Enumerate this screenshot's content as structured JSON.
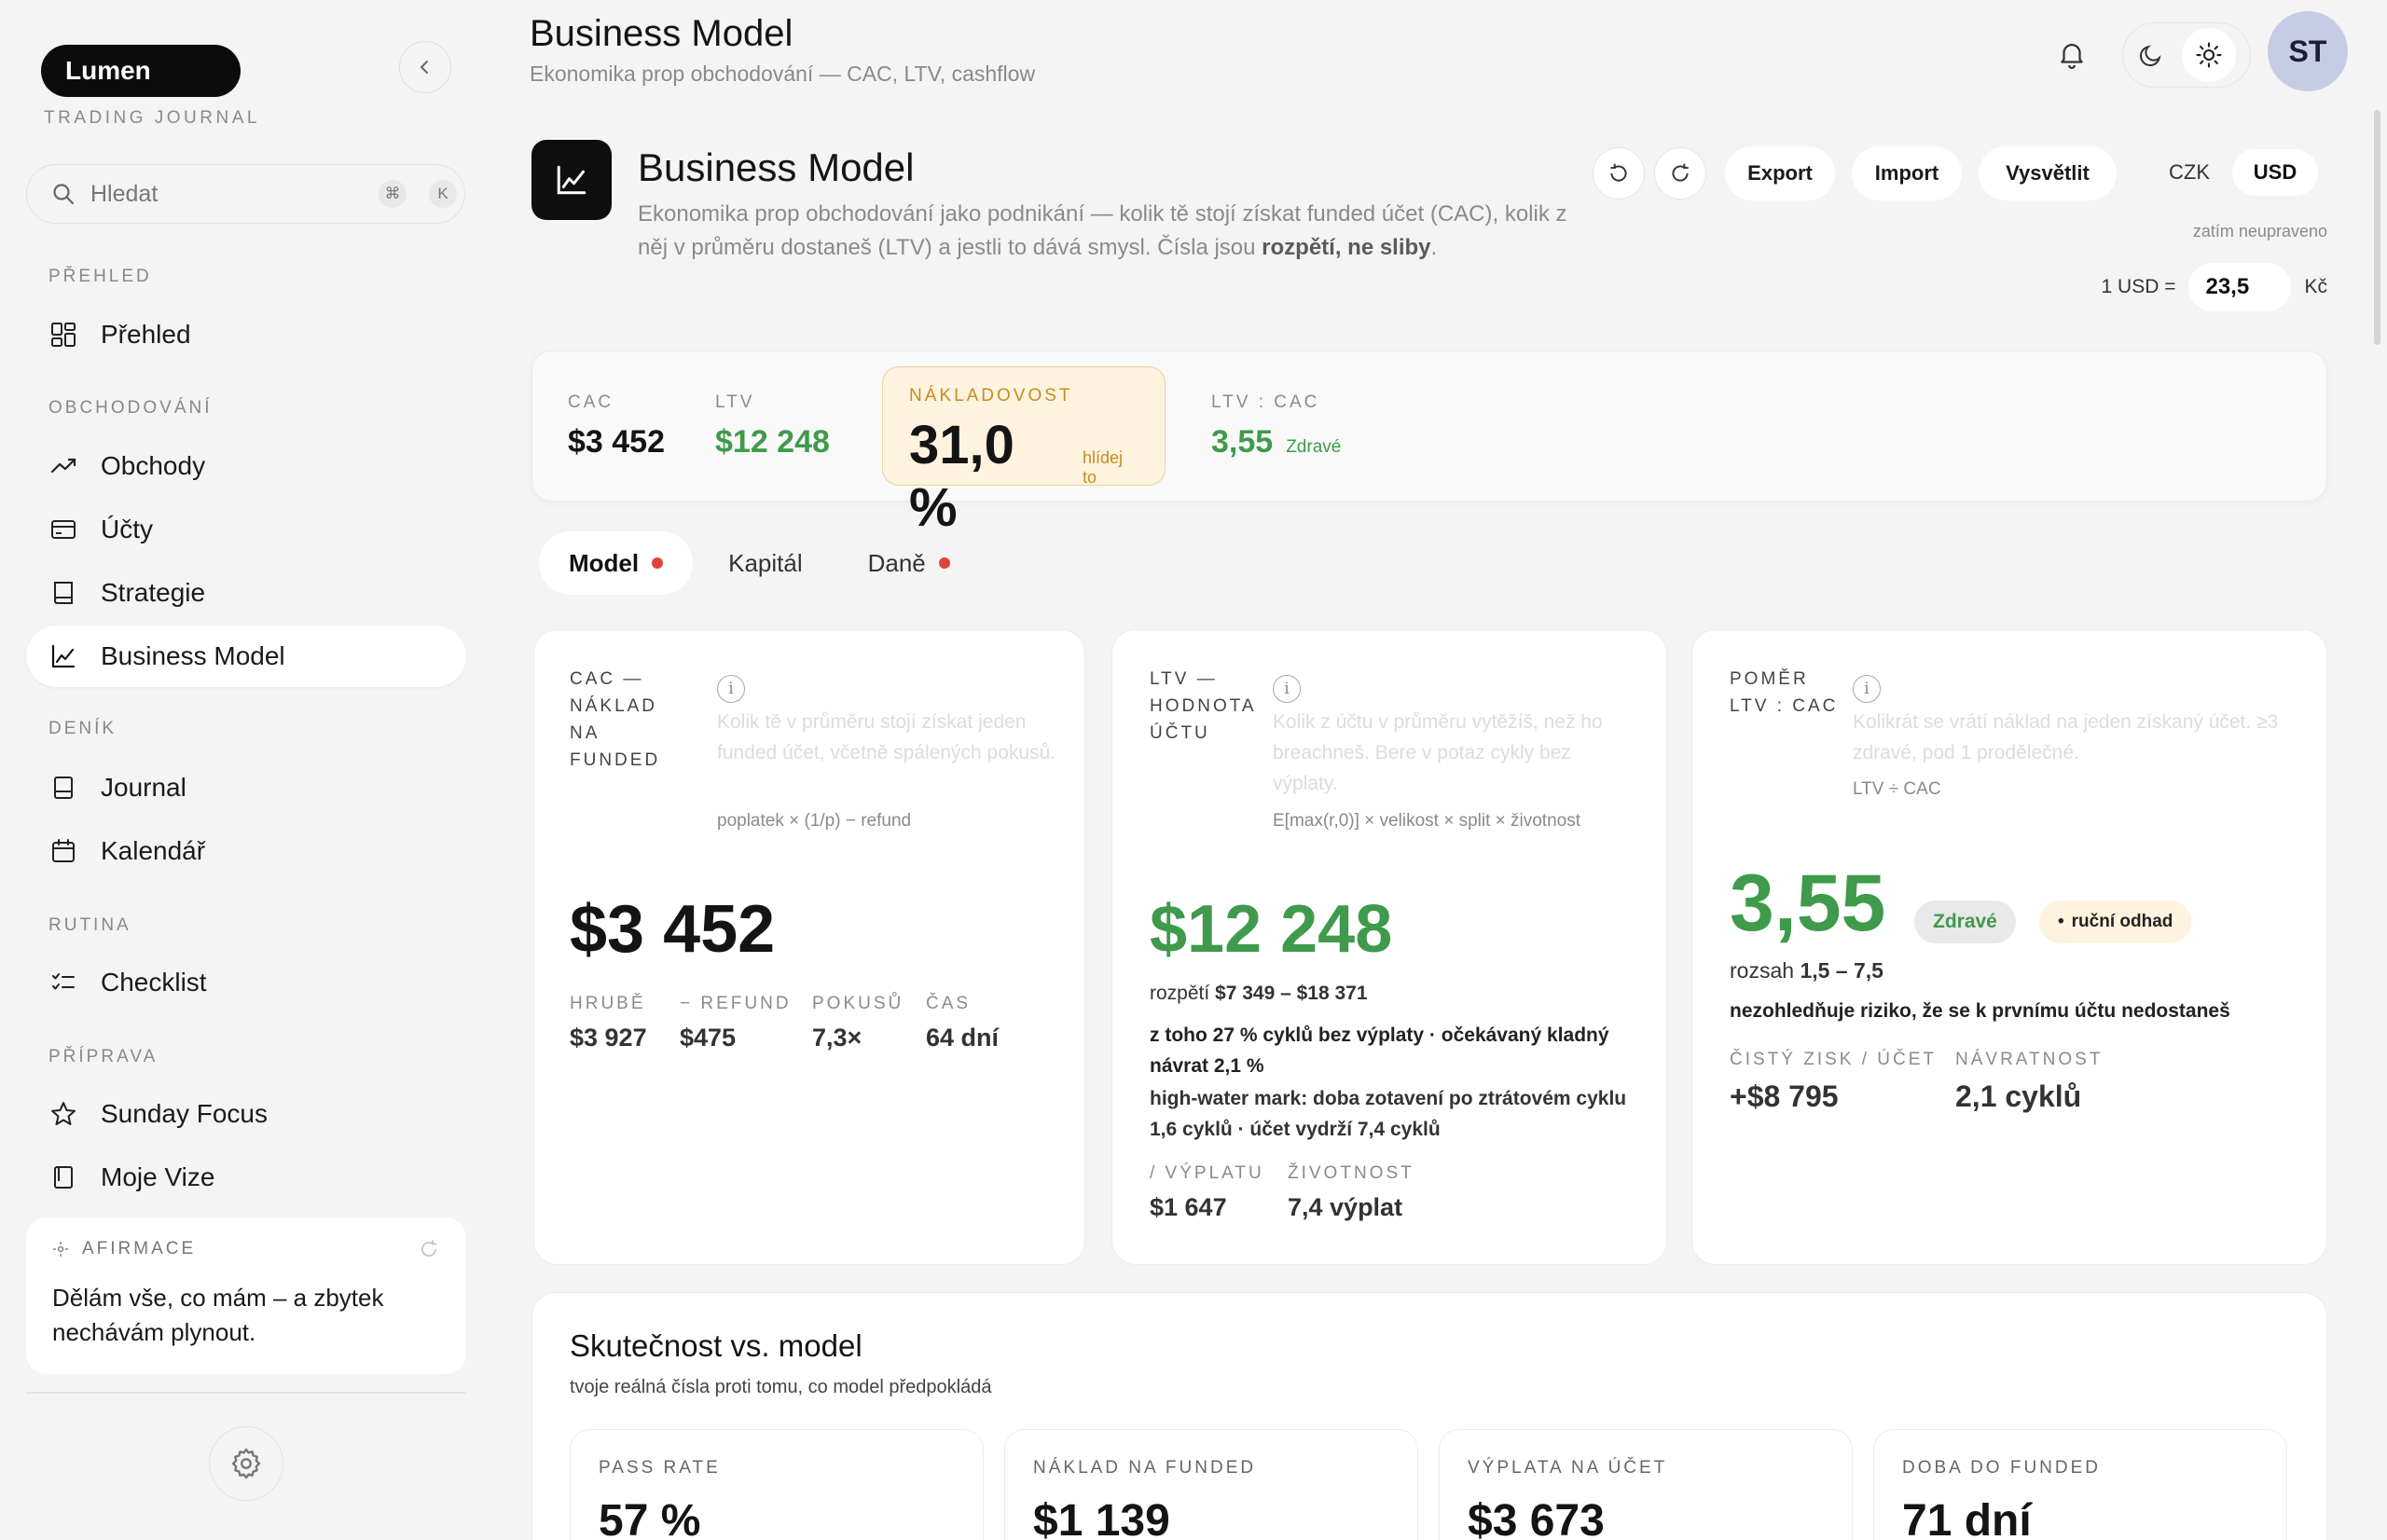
{
  "sidebar": {
    "logo": "Lumen",
    "logo_sub": "TRADING JOURNAL",
    "search_placeholder": "Hledat",
    "search_keys": [
      "⌘",
      "K"
    ],
    "sections": {
      "prehled": "PŘEHLED",
      "obchodovani": "OBCHODOVÁNÍ",
      "denik": "DENÍK",
      "rutina": "RUTINA",
      "priprava": "PŘÍPRAVA"
    },
    "items": {
      "prehled": "Přehled",
      "obchody": "Obchody",
      "ucty": "Účty",
      "strategie": "Strategie",
      "business_model": "Business Model",
      "journal": "Journal",
      "kalendar": "Kalendář",
      "checklist": "Checklist",
      "sunday_focus": "Sunday Focus",
      "moje_vize": "Moje Vize"
    },
    "affirmation": {
      "label": "AFIRMACE",
      "text": "Dělám vše, co mám – a zbytek nechávám plynout."
    }
  },
  "header": {
    "title": "Business Model",
    "subtitle": "Ekonomika prop obchodování — CAC, LTV, cashflow",
    "avatar": "ST"
  },
  "hero": {
    "title": "Business Model",
    "desc_plain": "Ekonomika prop obchodování jako podnikání — kolik tě stojí získat funded účet (CAC), kolik z něj v průměru dostaneš (LTV) a jestli to dává smysl. Čísla jsou ",
    "desc_bold": "rozpětí, ne sliby",
    "desc_end": ".",
    "buttons": {
      "export": "Export",
      "import": "Import",
      "explain": "Vysvětlit"
    },
    "currency": {
      "czk": "CZK",
      "usd": "USD",
      "selected": "USD"
    },
    "unsaved": "zatím neupraveno",
    "rate_label": "1 USD =",
    "rate_value": "23,5",
    "rate_unit": "Kč"
  },
  "kpi": {
    "cac": {
      "label": "CAC",
      "value": "$3 452"
    },
    "ltv": {
      "label": "LTV",
      "value": "$12 248"
    },
    "cost": {
      "label": "NÁKLADOVOST",
      "value": "31,0 %",
      "note": "hlídej to"
    },
    "ratio": {
      "label": "LTV : CAC",
      "value": "3,55",
      "note": "Zdravé"
    }
  },
  "tabs": [
    "Model",
    "Kapitál",
    "Daně"
  ],
  "cards": {
    "cac": {
      "label": "CAC — NÁKLAD NA FUNDED",
      "hint": "Kolik tě v průměru stojí získat jeden funded účet, včetně spálených pokusů.",
      "formula": "poplatek × (1/p) − refund",
      "value": "$3 452",
      "subs": [
        {
          "label": "HRUBĚ",
          "value": "$3 927"
        },
        {
          "label": "− REFUND",
          "value": "$475"
        },
        {
          "label": "POKUSŮ",
          "value": "7,3×"
        },
        {
          "label": "ČAS",
          "value": "64 dní"
        }
      ]
    },
    "ltv": {
      "label": "LTV — HODNOTA ÚČTU",
      "hint": "Kolik z účtu v průměru vytěžíš, než ho breachneš. Bere v potaz cykly bez výplaty.",
      "formula": "E[max(r,0)] × velikost × split × životnost",
      "value": "$12 248",
      "range_label": "rozpětí",
      "range_value": "$7 349 – $18 371",
      "note1": "z toho 27 % cyklů bez výplaty · očekávaný kladný návrat 2,1 %",
      "note2": "high-water mark: doba zotavení po ztrátovém cyklu 1,6 cyklů · účet vydrží 7,4 cyklů",
      "subs": [
        {
          "label": "/ VÝPLATU",
          "value": "$1 647"
        },
        {
          "label": "ŽIVOTNOST",
          "value": "7,4 výplat"
        }
      ]
    },
    "ratio": {
      "label": "POMĚR LTV : CAC",
      "hint": "Kolikrát se vrátí náklad na jeden získaný účet. ≥3 zdravé, pod 1 prodělečné.",
      "formula": "LTV ÷ CAC",
      "value": "3,55",
      "badge": "Zdravé",
      "badge2": "ruční odhad",
      "range_label": "rozsah",
      "range_value": "1,5 – 7,5",
      "warning": "nezohledňuje riziko, že se k prvnímu účtu nedostaneš",
      "subs": [
        {
          "label": "ČISTÝ ZISK / ÚČET",
          "value": "+$8 795"
        },
        {
          "label": "NÁVRATNOST",
          "value": "2,1 cyklů"
        }
      ]
    }
  },
  "reality": {
    "title": "Skutečnost vs. model",
    "subtitle": "tvoje reálná čísla proti tomu, co model předpokládá",
    "stats": [
      {
        "label": "PASS RATE",
        "value": "57 %"
      },
      {
        "label": "NÁKLAD NA FUNDED",
        "value": "$1 139"
      },
      {
        "label": "VÝPLATA NA ÚČET",
        "value": "$3 673"
      },
      {
        "label": "DOBA DO FUNDED",
        "value": "71 dní"
      }
    ]
  },
  "colors": {
    "positive": "#3f9a4c",
    "warning": "#c98c1c",
    "alert": "#e0423d",
    "avatar": "#c7cce6"
  }
}
